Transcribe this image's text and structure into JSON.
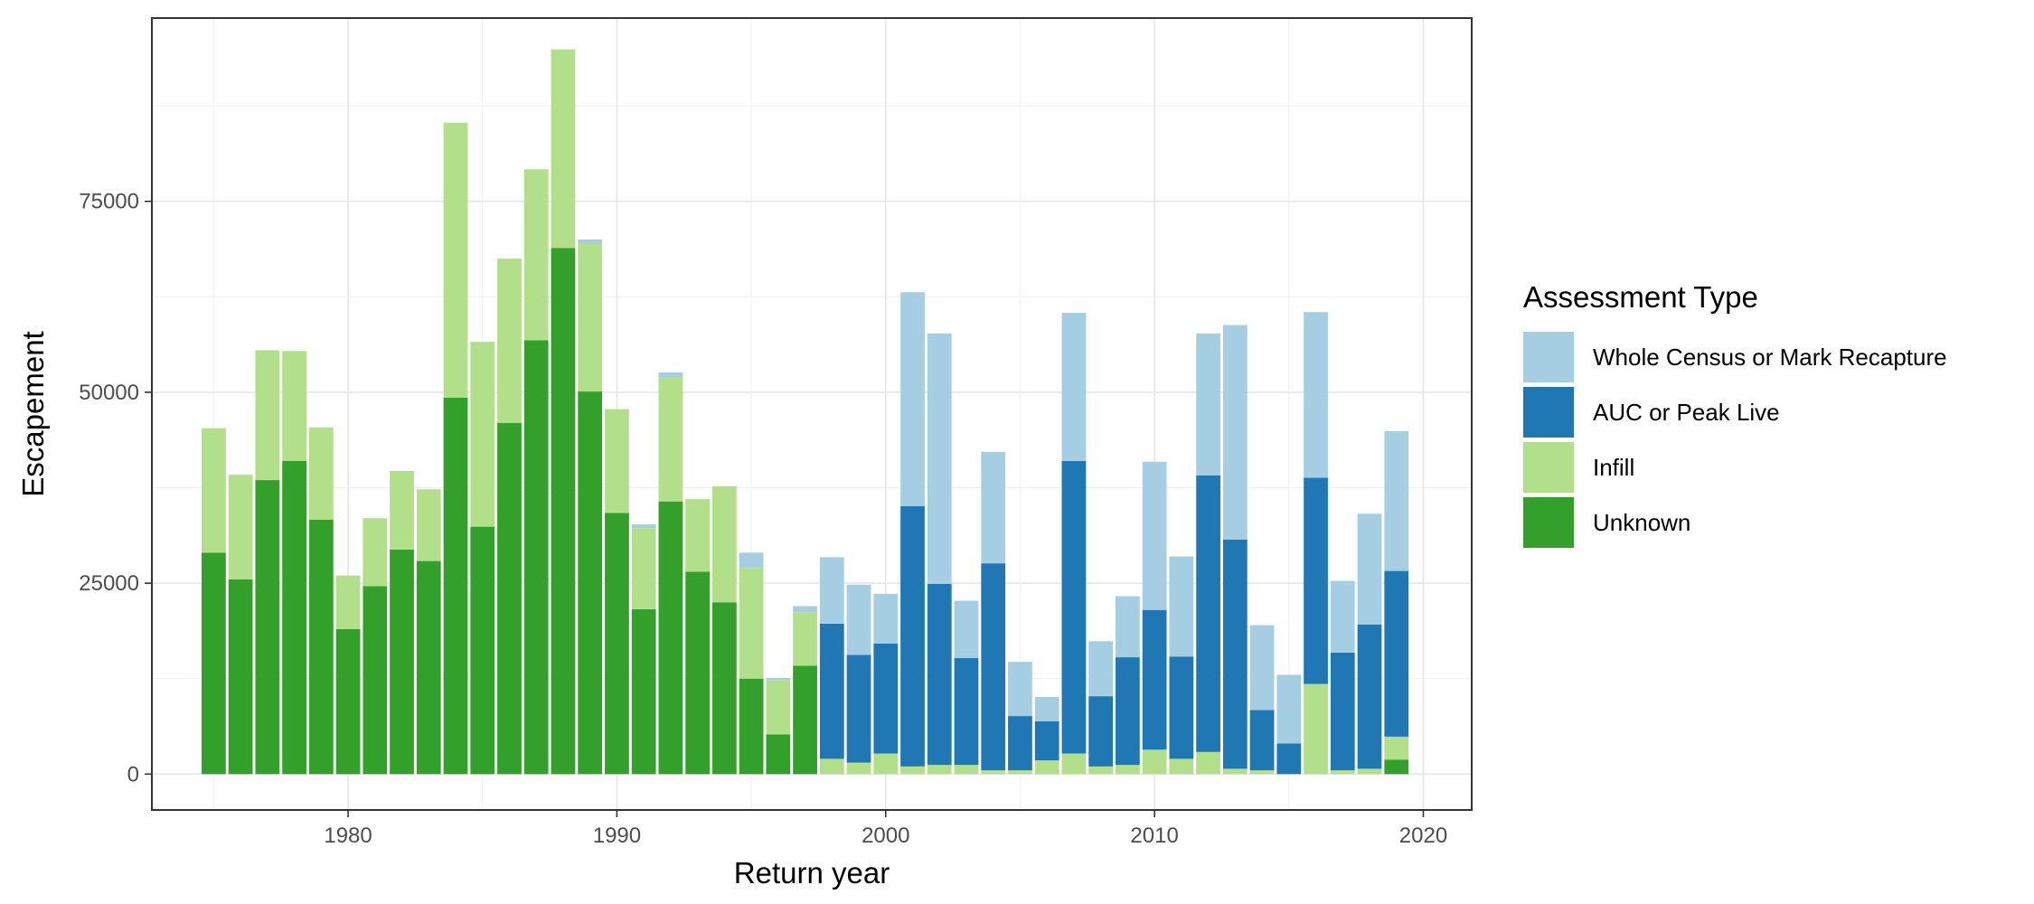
{
  "chart_data": {
    "type": "bar",
    "stacked": true,
    "xlabel": "Return year",
    "ylabel": "Escapement",
    "xlim": [
      1972.7,
      2021.8
    ],
    "ylim": [
      -4700,
      99000
    ],
    "x_ticks": [
      1980,
      1990,
      2000,
      2010,
      2020
    ],
    "y_ticks": [
      0,
      25000,
      50000,
      75000
    ],
    "grid": true,
    "legend": {
      "title": "Assessment Type",
      "position": "right",
      "entries": [
        {
          "key": "census",
          "label": "Whole Census or Mark Recapture",
          "color": "#a6cee3"
        },
        {
          "key": "auc",
          "label": "AUC or Peak Live",
          "color": "#1f78b4"
        },
        {
          "key": "infill",
          "label": "Infill",
          "color": "#b2df8a"
        },
        {
          "key": "unknown",
          "label": "Unknown",
          "color": "#33a02c"
        }
      ]
    },
    "stack_order_bottom_to_top": [
      "unknown",
      "infill",
      "auc",
      "census"
    ],
    "years": [
      1975,
      1976,
      1977,
      1978,
      1979,
      1980,
      1981,
      1982,
      1983,
      1984,
      1985,
      1986,
      1987,
      1988,
      1989,
      1990,
      1991,
      1992,
      1993,
      1994,
      1995,
      1996,
      1997,
      1998,
      1999,
      2000,
      2001,
      2002,
      2003,
      2004,
      2005,
      2006,
      2007,
      2008,
      2009,
      2010,
      2011,
      2012,
      2013,
      2014,
      2015,
      2016,
      2017,
      2018,
      2019
    ],
    "series": [
      {
        "key": "unknown",
        "name": "Unknown",
        "color": "#33a02c",
        "values": [
          29000,
          25500,
          38500,
          41000,
          33300,
          19000,
          24600,
          29400,
          27900,
          49300,
          32400,
          46000,
          56800,
          68900,
          50100,
          34200,
          21600,
          35700,
          26500,
          22500,
          12500,
          5200,
          14200,
          0,
          0,
          0,
          0,
          0,
          0,
          0,
          0,
          0,
          0,
          0,
          0,
          0,
          0,
          0,
          0,
          0,
          0,
          0,
          0,
          0,
          1900
        ]
      },
      {
        "key": "infill",
        "name": "Infill",
        "color": "#b2df8a",
        "values": [
          16300,
          13700,
          17000,
          14400,
          12100,
          7000,
          8900,
          10300,
          9400,
          36000,
          24200,
          21500,
          22400,
          26000,
          19300,
          13600,
          10600,
          16300,
          9500,
          15200,
          14500,
          7100,
          7000,
          2000,
          1500,
          2700,
          1000,
          1200,
          1200,
          500,
          500,
          1800,
          2700,
          1000,
          1200,
          3200,
          2000,
          2900,
          700,
          500,
          0,
          11800,
          500,
          700,
          3000
        ]
      },
      {
        "key": "auc",
        "name": "AUC or Peak Live",
        "color": "#1f78b4",
        "values": [
          0,
          0,
          0,
          0,
          0,
          0,
          0,
          0,
          0,
          0,
          0,
          0,
          0,
          0,
          0,
          0,
          0,
          0,
          0,
          0,
          0,
          0,
          0,
          17700,
          14100,
          14400,
          34100,
          23700,
          14000,
          27100,
          7100,
          5100,
          38300,
          9200,
          14100,
          18300,
          13400,
          36200,
          30000,
          7900,
          4000,
          27000,
          15400,
          18900,
          21700
        ]
      },
      {
        "key": "census",
        "name": "Whole Census or Mark Recapture",
        "color": "#a6cee3",
        "values": [
          0,
          0,
          0,
          0,
          0,
          0,
          0,
          0,
          0,
          0,
          0,
          0,
          0,
          0,
          600,
          0,
          500,
          600,
          0,
          0,
          2000,
          300,
          800,
          8700,
          9200,
          6500,
          28000,
          32800,
          7500,
          14600,
          7100,
          3200,
          19400,
          7200,
          8000,
          19400,
          13100,
          18600,
          28100,
          11100,
          9000,
          21700,
          9400,
          14500,
          18300
        ]
      }
    ]
  }
}
